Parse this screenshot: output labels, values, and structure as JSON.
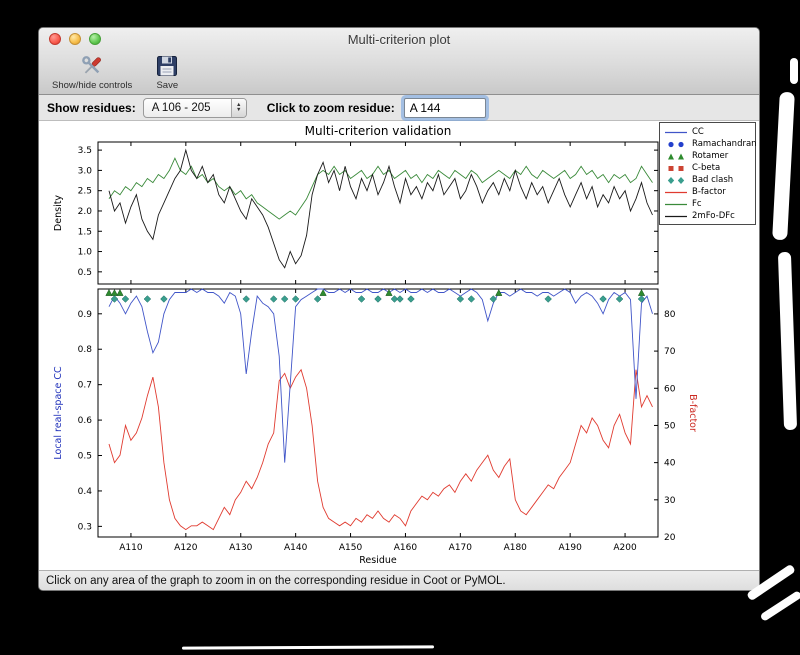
{
  "window": {
    "title": "Multi-criterion plot"
  },
  "toolbar": {
    "show_hide_label": "Show/hide controls",
    "save_label": "Save"
  },
  "controls": {
    "show_residues_label": "Show residues:",
    "residue_range_value": "A 106 - 205",
    "zoom_residue_label": "Click to zoom residue:",
    "zoom_residue_value": "A 144"
  },
  "status_bar": {
    "text": "Click on any area of the graph to zoom in on the corresponding residue in Coot or PyMOL."
  },
  "chart_data": {
    "type": "line",
    "title": "Multi-criterion validation",
    "x_label": "Residue",
    "x_start": 106,
    "x_range": [
      104,
      206
    ],
    "x_ticks": [
      "A110",
      "A120",
      "A130",
      "A140",
      "A150",
      "A160",
      "A170",
      "A180",
      "A190",
      "A200"
    ],
    "top_plot": {
      "ylabel": "Density",
      "ylim": [
        0.2,
        3.7
      ],
      "yticks": [
        0.5,
        1.0,
        1.5,
        2.0,
        2.5,
        3.0,
        3.5
      ],
      "series": [
        {
          "name": "Fc",
          "color": "#3a8a3a",
          "values": [
            2.3,
            2.5,
            2.4,
            2.6,
            2.5,
            2.7,
            2.6,
            2.8,
            2.7,
            2.9,
            2.8,
            3.0,
            3.3,
            3.0,
            2.9,
            3.1,
            2.8,
            2.9,
            2.7,
            2.8,
            2.6,
            2.5,
            2.6,
            2.4,
            2.5,
            2.3,
            2.4,
            2.2,
            2.1,
            2.0,
            1.9,
            1.8,
            1.9,
            2.0,
            1.9,
            2.1,
            2.3,
            2.6,
            2.9,
            3.0,
            2.9,
            3.1,
            2.9,
            3.0,
            2.8,
            2.9,
            3.0,
            2.8,
            2.9,
            3.1,
            2.9,
            3.0,
            2.8,
            2.9,
            3.0,
            2.8,
            2.9,
            2.7,
            2.9,
            2.8,
            3.0,
            2.9,
            2.8,
            3.0,
            2.9,
            2.8,
            3.0,
            2.9,
            2.7,
            2.8,
            2.9,
            3.0,
            2.9,
            2.8,
            3.0,
            2.9,
            3.1,
            2.9,
            2.8,
            3.0,
            2.9,
            2.8,
            2.9,
            3.0,
            2.8,
            2.9,
            3.1,
            2.9,
            3.0,
            2.8,
            2.9,
            2.7,
            2.9,
            2.8,
            2.9,
            2.7,
            2.8,
            3.1,
            2.9,
            2.7
          ]
        },
        {
          "name": "2mFo-DFc",
          "color": "#1a1a1a",
          "values": [
            2.5,
            2.0,
            2.2,
            1.7,
            2.1,
            2.4,
            1.8,
            1.5,
            1.3,
            1.9,
            2.2,
            2.5,
            2.8,
            3.0,
            3.5,
            3.0,
            2.8,
            3.1,
            2.7,
            2.9,
            2.4,
            2.2,
            2.6,
            2.3,
            2.0,
            1.8,
            2.3,
            2.1,
            1.9,
            1.6,
            1.2,
            0.8,
            0.6,
            1.0,
            0.7,
            0.9,
            1.4,
            2.4,
            2.9,
            3.2,
            2.7,
            3.0,
            2.5,
            3.1,
            2.6,
            2.3,
            2.8,
            2.5,
            2.9,
            2.4,
            2.7,
            3.1,
            2.6,
            2.2,
            2.8,
            2.4,
            2.6,
            2.3,
            2.7,
            2.5,
            2.9,
            2.4,
            2.6,
            2.8,
            2.3,
            2.5,
            2.9,
            2.6,
            2.2,
            2.5,
            2.7,
            2.4,
            2.8,
            2.5,
            3.0,
            2.6,
            2.3,
            2.7,
            2.4,
            2.6,
            2.2,
            2.5,
            2.8,
            2.4,
            2.1,
            2.4,
            2.7,
            2.3,
            2.6,
            2.1,
            2.4,
            2.2,
            2.6,
            2.3,
            2.5,
            2.0,
            2.3,
            2.7,
            2.2,
            1.9
          ]
        }
      ]
    },
    "bottom_plot": {
      "ylabel_left": "Local real-space CC",
      "ylabel_left_color": "#2233bb",
      "ylim_left": [
        0.27,
        0.97
      ],
      "yticks_left": [
        0.3,
        0.4,
        0.5,
        0.6,
        0.7,
        0.8,
        0.9
      ],
      "ylabel_right": "B-factor",
      "ylabel_right_color": "#cc2a22",
      "ylim_right": [
        20,
        86.7
      ],
      "yticks_right": [
        20,
        30,
        40,
        50,
        60,
        70,
        80
      ],
      "series": [
        {
          "name": "B-factor",
          "axis": "right",
          "color": "#e03b30",
          "values": [
            45,
            40,
            42,
            50,
            46,
            48,
            52,
            58,
            63,
            55,
            40,
            30,
            25,
            23,
            22,
            23,
            23,
            24,
            23,
            22,
            25,
            28,
            26,
            30,
            32,
            35,
            33,
            36,
            40,
            45,
            48,
            62,
            64,
            60,
            63,
            65,
            60,
            50,
            35,
            28,
            25,
            24,
            23,
            24,
            23,
            25,
            24,
            26,
            25,
            27,
            25,
            24,
            26,
            25,
            23,
            27,
            29,
            31,
            30,
            32,
            31,
            33,
            34,
            32,
            35,
            37,
            35,
            38,
            40,
            42,
            38,
            36,
            39,
            41,
            30,
            27,
            26,
            28,
            30,
            32,
            34,
            33,
            36,
            38,
            40,
            45,
            50,
            48,
            52,
            50,
            46,
            44,
            50,
            53,
            48,
            45,
            65,
            55,
            58,
            55
          ]
        },
        {
          "name": "CC",
          "axis": "left",
          "color": "#4055c8",
          "values": [
            0.92,
            0.95,
            0.93,
            0.9,
            0.93,
            0.95,
            0.92,
            0.85,
            0.79,
            0.82,
            0.9,
            0.94,
            0.96,
            0.96,
            0.96,
            0.97,
            0.96,
            0.97,
            0.96,
            0.96,
            0.95,
            0.93,
            0.96,
            0.95,
            0.9,
            0.73,
            0.85,
            0.95,
            0.93,
            0.92,
            0.9,
            0.78,
            0.48,
            0.7,
            0.92,
            0.94,
            0.95,
            0.96,
            0.97,
            0.97,
            0.96,
            0.96,
            0.97,
            0.96,
            0.97,
            0.96,
            0.96,
            0.97,
            0.96,
            0.96,
            0.97,
            0.96,
            0.97,
            0.96,
            0.97,
            0.96,
            0.96,
            0.97,
            0.96,
            0.97,
            0.96,
            0.96,
            0.97,
            0.96,
            0.95,
            0.96,
            0.97,
            0.96,
            0.94,
            0.88,
            0.93,
            0.96,
            0.96,
            0.95,
            0.96,
            0.97,
            0.96,
            0.96,
            0.95,
            0.96,
            0.96,
            0.95,
            0.96,
            0.97,
            0.96,
            0.93,
            0.95,
            0.96,
            0.95,
            0.93,
            0.9,
            0.94,
            0.96,
            0.95,
            0.96,
            0.94,
            0.66,
            0.93,
            0.95,
            0.9
          ]
        }
      ],
      "markers": [
        {
          "name": "Rotamer",
          "shape": "triangle",
          "color": "#2e8b2e",
          "residues": [
            106,
            107,
            108,
            145,
            157,
            177,
            203
          ]
        },
        {
          "name": "Bad clash",
          "shape": "diamond",
          "color": "#3a9e8e",
          "residues": [
            107,
            109,
            113,
            116,
            131,
            136,
            138,
            140,
            144,
            152,
            155,
            158,
            159,
            161,
            170,
            172,
            176,
            186,
            196,
            199,
            203
          ]
        },
        {
          "name": "Ramachandran",
          "shape": "circle",
          "color": "#2440cc",
          "residues": []
        },
        {
          "name": "C-beta",
          "shape": "square",
          "color": "#cc4433",
          "residues": []
        }
      ]
    },
    "legend": [
      {
        "label": "CC",
        "symbol": "line",
        "color": "#4055c8"
      },
      {
        "label": "Ramachandran",
        "symbol": "circle",
        "color": "#2440cc"
      },
      {
        "label": "Rotamer",
        "symbol": "triangle",
        "color": "#2e8b2e"
      },
      {
        "label": "C-beta",
        "symbol": "square",
        "color": "#cc4433"
      },
      {
        "label": "Bad clash",
        "symbol": "diamond",
        "color": "#3a9e8e"
      },
      {
        "label": "B-factor",
        "symbol": "line",
        "color": "#e03b30"
      },
      {
        "label": "Fc",
        "symbol": "line",
        "color": "#3a8a3a"
      },
      {
        "label": "2mFo-DFc",
        "symbol": "line",
        "color": "#1a1a1a"
      }
    ]
  }
}
